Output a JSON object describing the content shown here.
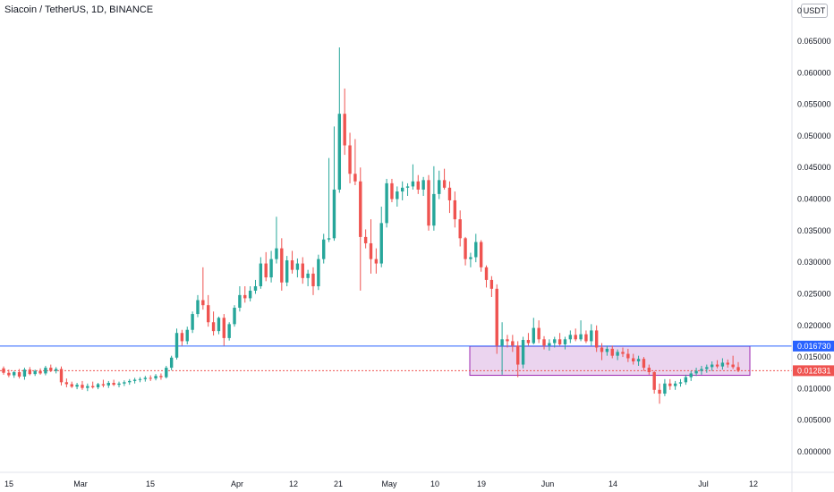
{
  "chart_title": "Siacoin / TetherUS, 1D, BINANCE",
  "currency_button": "USDT",
  "chart_data": {
    "type": "candlestick",
    "title": "Siacoin / TetherUS, 1D, BINANCE",
    "ylim": [
      0.0,
      0.0685
    ],
    "grid": false,
    "y_ticks": [
      "0.065000",
      "0.060000",
      "0.055000",
      "0.050000",
      "0.045000",
      "0.040000",
      "0.035000",
      "0.030000",
      "0.025000",
      "0.020000",
      "0.015000",
      "0.010000",
      "0.005000",
      "0.000000"
    ],
    "x_ticks": [
      "15",
      "Mar",
      "15",
      "Apr",
      "12",
      "21",
      "May",
      "10",
      "19",
      "Jun",
      "14",
      "Jul",
      "12"
    ],
    "price_lines": [
      {
        "value": "0.016730",
        "number": 0.01673,
        "color": "#2962ff",
        "style": "solid"
      },
      {
        "value": "0.012831",
        "number": 0.012831,
        "color": "#ef5350",
        "style": "dotted"
      }
    ],
    "range_box": {
      "from": 0.0121,
      "to": 0.0167,
      "color": "#9c27b0"
    },
    "up_color": "#26a69a",
    "down_color": "#ef5350",
    "candles": [
      [
        0.0132,
        0.0135,
        0.0122,
        0.0125
      ],
      [
        0.0125,
        0.013,
        0.0118,
        0.0121
      ],
      [
        0.0121,
        0.0128,
        0.0117,
        0.0126
      ],
      [
        0.0126,
        0.0131,
        0.0116,
        0.0119
      ],
      [
        0.0119,
        0.0133,
        0.0114,
        0.013
      ],
      [
        0.013,
        0.0134,
        0.0121,
        0.0123
      ],
      [
        0.0123,
        0.013,
        0.012,
        0.0128
      ],
      [
        0.0128,
        0.0132,
        0.0122,
        0.0124
      ],
      [
        0.0124,
        0.0136,
        0.0121,
        0.0133
      ],
      [
        0.0133,
        0.0138,
        0.0126,
        0.0128
      ],
      [
        0.0128,
        0.0134,
        0.0124,
        0.0131
      ],
      [
        0.0131,
        0.0135,
        0.0105,
        0.011
      ],
      [
        0.011,
        0.0116,
        0.0102,
        0.0107
      ],
      [
        0.0107,
        0.0111,
        0.0101,
        0.0103
      ],
      [
        0.0103,
        0.0109,
        0.0099,
        0.0106
      ],
      [
        0.0106,
        0.0112,
        0.0098,
        0.0101
      ],
      [
        0.0101,
        0.0108,
        0.0096,
        0.0104
      ],
      [
        0.0104,
        0.0111,
        0.01,
        0.0102
      ],
      [
        0.0102,
        0.0109,
        0.0099,
        0.0107
      ],
      [
        0.0107,
        0.0114,
        0.0102,
        0.0105
      ],
      [
        0.0105,
        0.0112,
        0.0101,
        0.0109
      ],
      [
        0.0109,
        0.0114,
        0.0104,
        0.0106
      ],
      [
        0.0106,
        0.0111,
        0.0102,
        0.0108
      ],
      [
        0.0108,
        0.0113,
        0.0104,
        0.011
      ],
      [
        0.011,
        0.0115,
        0.0106,
        0.0112
      ],
      [
        0.0112,
        0.0117,
        0.0108,
        0.0114
      ],
      [
        0.0114,
        0.0118,
        0.011,
        0.0115
      ],
      [
        0.0115,
        0.012,
        0.0111,
        0.0117
      ],
      [
        0.0117,
        0.0121,
        0.0112,
        0.0116
      ],
      [
        0.0116,
        0.0123,
        0.0113,
        0.012
      ],
      [
        0.012,
        0.0124,
        0.0114,
        0.0118
      ],
      [
        0.0118,
        0.0136,
        0.0116,
        0.0133
      ],
      [
        0.0133,
        0.0152,
        0.0129,
        0.0149
      ],
      [
        0.0149,
        0.0195,
        0.0146,
        0.0188
      ],
      [
        0.0188,
        0.0193,
        0.0168,
        0.0175
      ],
      [
        0.0175,
        0.0198,
        0.017,
        0.0193
      ],
      [
        0.0193,
        0.0222,
        0.0188,
        0.0218
      ],
      [
        0.0218,
        0.0248,
        0.0213,
        0.024
      ],
      [
        0.024,
        0.0292,
        0.0225,
        0.0232
      ],
      [
        0.0232,
        0.0248,
        0.0198,
        0.0205
      ],
      [
        0.0205,
        0.0222,
        0.0184,
        0.0191
      ],
      [
        0.0191,
        0.0214,
        0.0186,
        0.0212
      ],
      [
        0.0212,
        0.0218,
        0.0168,
        0.018
      ],
      [
        0.018,
        0.0205,
        0.0176,
        0.0202
      ],
      [
        0.0202,
        0.0232,
        0.0198,
        0.0228
      ],
      [
        0.0228,
        0.0262,
        0.0222,
        0.0248
      ],
      [
        0.0248,
        0.0262,
        0.0236,
        0.0243
      ],
      [
        0.0243,
        0.0262,
        0.0238,
        0.0255
      ],
      [
        0.0255,
        0.0272,
        0.025,
        0.0262
      ],
      [
        0.0262,
        0.0308,
        0.0258,
        0.0298
      ],
      [
        0.0298,
        0.0316,
        0.027,
        0.0276
      ],
      [
        0.0276,
        0.0318,
        0.0268,
        0.0305
      ],
      [
        0.0305,
        0.0372,
        0.0298,
        0.0322
      ],
      [
        0.0322,
        0.0338,
        0.0255,
        0.0268
      ],
      [
        0.0268,
        0.031,
        0.0262,
        0.0303
      ],
      [
        0.0303,
        0.0318,
        0.0282,
        0.0288
      ],
      [
        0.0288,
        0.0306,
        0.0276,
        0.0298
      ],
      [
        0.0298,
        0.0308,
        0.0266,
        0.0275
      ],
      [
        0.0275,
        0.0288,
        0.0262,
        0.0282
      ],
      [
        0.0282,
        0.0292,
        0.0248,
        0.0262
      ],
      [
        0.0262,
        0.0312,
        0.0256,
        0.0305
      ],
      [
        0.0305,
        0.0345,
        0.0298,
        0.0336
      ],
      [
        0.0336,
        0.0465,
        0.0332,
        0.0338
      ],
      [
        0.0338,
        0.0515,
        0.0334,
        0.0415
      ],
      [
        0.0415,
        0.064,
        0.041,
        0.0535
      ],
      [
        0.0535,
        0.0575,
        0.047,
        0.0485
      ],
      [
        0.0485,
        0.0505,
        0.0425,
        0.044
      ],
      [
        0.044,
        0.0495,
        0.0422,
        0.0428
      ],
      [
        0.0428,
        0.045,
        0.0255,
        0.034
      ],
      [
        0.034,
        0.0352,
        0.0322,
        0.033
      ],
      [
        0.033,
        0.0368,
        0.0282,
        0.0305
      ],
      [
        0.0305,
        0.0322,
        0.0282,
        0.0298
      ],
      [
        0.0298,
        0.0388,
        0.0292,
        0.0362
      ],
      [
        0.0362,
        0.0432,
        0.0355,
        0.0425
      ],
      [
        0.0425,
        0.0432,
        0.0395,
        0.04
      ],
      [
        0.04,
        0.042,
        0.0388,
        0.0412
      ],
      [
        0.0412,
        0.0428,
        0.0398,
        0.0418
      ],
      [
        0.0418,
        0.0425,
        0.0405,
        0.042
      ],
      [
        0.042,
        0.0455,
        0.0415,
        0.0428
      ],
      [
        0.0428,
        0.0438,
        0.0408,
        0.0415
      ],
      [
        0.0415,
        0.0435,
        0.0405,
        0.043
      ],
      [
        0.043,
        0.0438,
        0.035,
        0.0358
      ],
      [
        0.0358,
        0.0452,
        0.035,
        0.0408
      ],
      [
        0.0408,
        0.0445,
        0.04,
        0.043
      ],
      [
        0.043,
        0.0448,
        0.0415,
        0.0418
      ],
      [
        0.0418,
        0.0428,
        0.0378,
        0.0398
      ],
      [
        0.0398,
        0.0412,
        0.0355,
        0.0368
      ],
      [
        0.0368,
        0.0382,
        0.0325,
        0.0338
      ],
      [
        0.0338,
        0.034,
        0.0295,
        0.0305
      ],
      [
        0.0305,
        0.0315,
        0.0292,
        0.0308
      ],
      [
        0.0308,
        0.0345,
        0.03,
        0.0332
      ],
      [
        0.0332,
        0.0335,
        0.0285,
        0.0292
      ],
      [
        0.0292,
        0.0295,
        0.026,
        0.0272
      ],
      [
        0.0272,
        0.0278,
        0.0245,
        0.0258
      ],
      [
        0.0258,
        0.0265,
        0.0155,
        0.0168
      ],
      [
        0.0168,
        0.0205,
        0.0122,
        0.0178
      ],
      [
        0.0178,
        0.0185,
        0.0165,
        0.0175
      ],
      [
        0.0175,
        0.0185,
        0.0158,
        0.0168
      ],
      [
        0.0168,
        0.0175,
        0.0118,
        0.0138
      ],
      [
        0.0138,
        0.0182,
        0.0132,
        0.0177
      ],
      [
        0.0177,
        0.0188,
        0.0168,
        0.0172
      ],
      [
        0.0172,
        0.0212,
        0.017,
        0.0196
      ],
      [
        0.0196,
        0.0208,
        0.0172,
        0.0178
      ],
      [
        0.0178,
        0.0183,
        0.0162,
        0.0168
      ],
      [
        0.0168,
        0.0178,
        0.016,
        0.0172
      ],
      [
        0.0172,
        0.0182,
        0.0165,
        0.0178
      ],
      [
        0.0178,
        0.0188,
        0.0168,
        0.017
      ],
      [
        0.017,
        0.0182,
        0.0162,
        0.0178
      ],
      [
        0.0178,
        0.0192,
        0.0172,
        0.0185
      ],
      [
        0.0185,
        0.0195,
        0.0175,
        0.0178
      ],
      [
        0.0178,
        0.0208,
        0.0175,
        0.0186
      ],
      [
        0.0186,
        0.0192,
        0.0172,
        0.0175
      ],
      [
        0.0175,
        0.0202,
        0.0168,
        0.0192
      ],
      [
        0.0192,
        0.02,
        0.0158,
        0.0165
      ],
      [
        0.0165,
        0.0172,
        0.0145,
        0.0158
      ],
      [
        0.0158,
        0.0168,
        0.0152,
        0.0163
      ],
      [
        0.0163,
        0.0168,
        0.0148,
        0.0152
      ],
      [
        0.0152,
        0.0162,
        0.0145,
        0.0158
      ],
      [
        0.0158,
        0.0165,
        0.015,
        0.0155
      ],
      [
        0.0155,
        0.0163,
        0.0142,
        0.0148
      ],
      [
        0.0148,
        0.0155,
        0.0138,
        0.0143
      ],
      [
        0.0143,
        0.0152,
        0.0136,
        0.0147
      ],
      [
        0.0147,
        0.015,
        0.0128,
        0.0133
      ],
      [
        0.0133,
        0.0138,
        0.0122,
        0.0126
      ],
      [
        0.0126,
        0.0128,
        0.0092,
        0.0098
      ],
      [
        0.0098,
        0.0108,
        0.0076,
        0.0092
      ],
      [
        0.0092,
        0.0115,
        0.0088,
        0.0108
      ],
      [
        0.0108,
        0.0115,
        0.0098,
        0.0104
      ],
      [
        0.0104,
        0.0112,
        0.0098,
        0.0108
      ],
      [
        0.0108,
        0.0115,
        0.0103,
        0.011
      ],
      [
        0.011,
        0.0122,
        0.0106,
        0.0118
      ],
      [
        0.0118,
        0.0128,
        0.0112,
        0.0124
      ],
      [
        0.0124,
        0.0133,
        0.012,
        0.0128
      ],
      [
        0.0128,
        0.0136,
        0.0122,
        0.0131
      ],
      [
        0.0131,
        0.0138,
        0.0125,
        0.0134
      ],
      [
        0.0134,
        0.0143,
        0.0128,
        0.0138
      ],
      [
        0.0138,
        0.0145,
        0.0132,
        0.0135
      ],
      [
        0.0135,
        0.0148,
        0.013,
        0.0141
      ],
      [
        0.0141,
        0.0146,
        0.0133,
        0.0138
      ],
      [
        0.0138,
        0.0152,
        0.0131,
        0.0134
      ],
      [
        0.0134,
        0.0142,
        0.0126,
        0.01283
      ]
    ]
  }
}
